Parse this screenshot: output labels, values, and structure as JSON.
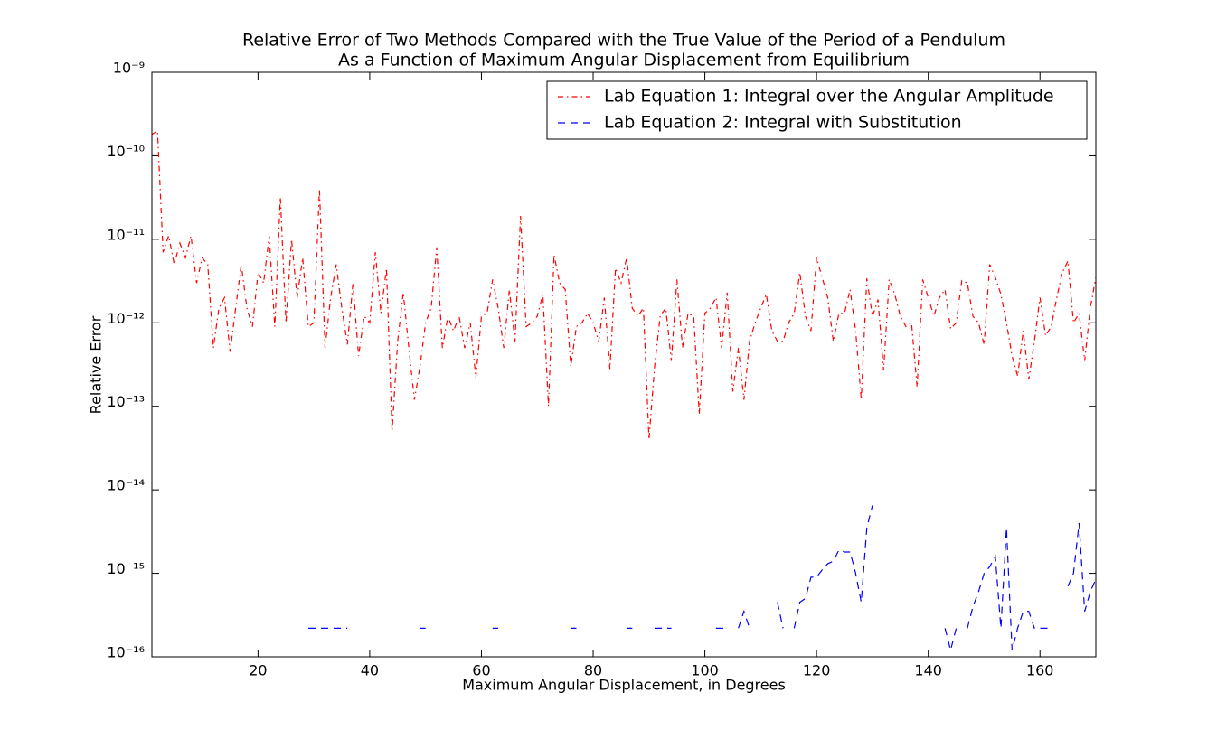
{
  "chart_data": {
    "type": "line",
    "title": "Relative Error of Two Methods Compared with the True Value of the Period of a Pendulum",
    "subtitle": "As a Function of Maximum Angular Displacement from Equilibrium",
    "x_label": "Maximum Angular Displacement, in Degrees",
    "y_label": "Relative Error",
    "yscale": "log",
    "legend": "upper right",
    "xlim": [
      1,
      170
    ],
    "ylim": [
      1e-16,
      1e-09
    ],
    "xticks": [
      20,
      40,
      60,
      80,
      100,
      120,
      140,
      160
    ],
    "yticks": [
      {
        "value": 1e-16,
        "label": "10⁻¹⁶"
      },
      {
        "value": 1e-15,
        "label": "10⁻¹⁵"
      },
      {
        "value": 1e-14,
        "label": "10⁻¹⁴"
      },
      {
        "value": 1e-13,
        "label": "10⁻¹³"
      },
      {
        "value": 1e-12,
        "label": "10⁻¹²"
      },
      {
        "value": 1e-11,
        "label": "10⁻¹¹"
      },
      {
        "value": 1e-10,
        "label": "10⁻¹⁰"
      },
      {
        "value": 1e-09,
        "label": "10⁻⁹"
      }
    ],
    "x": [
      1,
      2,
      3,
      4,
      5,
      6,
      7,
      8,
      9,
      10,
      11,
      12,
      13,
      14,
      15,
      16,
      17,
      18,
      19,
      20,
      21,
      22,
      23,
      24,
      25,
      26,
      27,
      28,
      29,
      30,
      31,
      32,
      33,
      34,
      35,
      36,
      37,
      38,
      39,
      40,
      41,
      42,
      43,
      44,
      45,
      46,
      47,
      48,
      49,
      50,
      51,
      52,
      53,
      54,
      55,
      56,
      57,
      58,
      59,
      60,
      61,
      62,
      63,
      64,
      65,
      66,
      67,
      68,
      69,
      70,
      71,
      72,
      73,
      74,
      75,
      76,
      77,
      78,
      79,
      80,
      81,
      82,
      83,
      84,
      85,
      86,
      87,
      88,
      89,
      90,
      91,
      92,
      93,
      94,
      95,
      96,
      97,
      98,
      99,
      100,
      101,
      102,
      103,
      104,
      105,
      106,
      107,
      108,
      109,
      110,
      111,
      112,
      113,
      114,
      115,
      116,
      117,
      118,
      119,
      120,
      121,
      122,
      123,
      124,
      125,
      126,
      127,
      128,
      129,
      130,
      131,
      132,
      133,
      134,
      135,
      136,
      137,
      138,
      139,
      140,
      141,
      142,
      143,
      144,
      145,
      146,
      147,
      148,
      149,
      150,
      151,
      152,
      153,
      154,
      155,
      156,
      157,
      158,
      159,
      160,
      161,
      162,
      163,
      164,
      165,
      166,
      167,
      168,
      169,
      170
    ],
    "series": [
      {
        "name": "Lab Equation 1: Integral over the Angular Amplitude",
        "color": "#ff0000",
        "linestyle": "-.",
        "values": [
          1.8e-10,
          2e-10,
          7e-12,
          1.1e-11,
          5e-12,
          9e-12,
          6e-12,
          1.1e-11,
          3e-12,
          6e-12,
          5e-12,
          5e-13,
          1.5e-12,
          2e-12,
          4.5e-13,
          1.5e-12,
          5e-12,
          1.5e-12,
          9e-13,
          4e-12,
          3e-12,
          1.1e-11,
          9e-13,
          3.2e-11,
          1e-12,
          1e-11,
          2e-12,
          6e-12,
          9e-13,
          1e-12,
          4e-11,
          5e-13,
          2e-12,
          5e-12,
          1.5e-12,
          5.5e-13,
          3e-12,
          4e-13,
          1.2e-12,
          1e-12,
          7e-12,
          1.3e-12,
          4.5e-12,
          5e-14,
          6e-13,
          2.3e-12,
          5e-13,
          1.2e-13,
          3e-13,
          1e-12,
          1.5e-12,
          8e-12,
          5e-13,
          1.2e-12,
          8e-13,
          1.2e-12,
          5e-13,
          1e-12,
          2.2e-13,
          1.2e-12,
          1.3e-12,
          3.3e-12,
          1.5e-12,
          5e-13,
          2.5e-12,
          6e-13,
          1.9e-11,
          9e-13,
          1e-12,
          1.2e-12,
          2.2e-12,
          1e-13,
          6.5e-12,
          3e-12,
          2.5e-12,
          3e-13,
          9e-13,
          1e-12,
          1.3e-12,
          1e-12,
          6e-13,
          2e-12,
          2.8e-13,
          4.5e-12,
          3e-12,
          6e-12,
          1.5e-12,
          1.2e-12,
          1.5e-12,
          4e-14,
          3e-13,
          1.2e-12,
          1.5e-12,
          3.5e-13,
          3.3e-12,
          5e-13,
          1.3e-12,
          1.2e-12,
          8e-14,
          1.3e-12,
          1.5e-12,
          2e-12,
          5e-13,
          2.3e-12,
          1.5e-13,
          5e-13,
          1.2e-13,
          6e-13,
          1e-12,
          1.5e-12,
          2.2e-12,
          8e-13,
          6e-13,
          6e-13,
          1e-12,
          1.3e-12,
          4e-12,
          1.2e-12,
          8e-13,
          6e-12,
          3.5e-12,
          2e-12,
          6e-13,
          1.3e-12,
          1.3e-12,
          2.5e-12,
          8e-13,
          1.2e-13,
          3.4e-12,
          1.2e-12,
          1.9e-12,
          2.7e-13,
          3.3e-12,
          2.2e-12,
          1.2e-12,
          9e-13,
          1e-12,
          1.7e-13,
          3.3e-12,
          2e-12,
          1.2e-12,
          2e-12,
          2.5e-12,
          8.5e-13,
          1e-12,
          3.2e-12,
          3e-12,
          1.2e-12,
          1e-12,
          5.5e-13,
          5e-12,
          3.5e-12,
          2.2e-12,
          1e-12,
          4e-13,
          2.3e-13,
          8e-13,
          2.1e-13,
          6e-13,
          2e-12,
          7e-13,
          9e-13,
          2e-12,
          4e-12,
          5.5e-12,
          1e-12,
          1.3e-12,
          3.5e-13,
          1.5e-12,
          3.5e-12
        ]
      },
      {
        "name": "Lab Equation 2: Integral with Substitution",
        "color": "#0000ff",
        "linestyle": "--",
        "values": [
          null,
          null,
          null,
          null,
          null,
          null,
          null,
          null,
          null,
          null,
          null,
          null,
          null,
          null,
          null,
          null,
          null,
          null,
          null,
          null,
          null,
          null,
          null,
          null,
          null,
          null,
          null,
          null,
          2.2e-16,
          2.2e-16,
          2.2e-16,
          2.2e-16,
          2.2e-16,
          2.2e-16,
          2.2e-16,
          2.2e-16,
          null,
          null,
          null,
          null,
          null,
          null,
          null,
          null,
          null,
          null,
          null,
          null,
          2.2e-16,
          2.2e-16,
          null,
          null,
          null,
          null,
          null,
          null,
          null,
          null,
          null,
          null,
          null,
          2.2e-16,
          2.2e-16,
          null,
          null,
          null,
          null,
          null,
          null,
          null,
          null,
          null,
          null,
          null,
          null,
          2.2e-16,
          2.2e-16,
          null,
          null,
          null,
          null,
          null,
          null,
          null,
          null,
          2.2e-16,
          2.2e-16,
          null,
          null,
          null,
          2.2e-16,
          2.2e-16,
          2.2e-16,
          2.2e-16,
          null,
          null,
          null,
          null,
          null,
          null,
          null,
          2.2e-16,
          2.2e-16,
          2.2e-16,
          null,
          2.2e-16,
          3.5e-16,
          2.2e-16,
          null,
          null,
          null,
          null,
          4.5e-16,
          2.2e-16,
          null,
          2.2e-16,
          4.5e-16,
          5e-16,
          9e-16,
          9e-16,
          1.1e-15,
          1.3e-15,
          1.4e-15,
          1.9e-15,
          1.8e-15,
          1.8e-15,
          1e-15,
          4.5e-16,
          3.5e-15,
          6.5e-15,
          null,
          null,
          null,
          null,
          null,
          null,
          null,
          null,
          null,
          null,
          null,
          null,
          2.2e-16,
          1.2e-16,
          2.2e-16,
          null,
          2.2e-16,
          4e-16,
          6e-16,
          1e-15,
          1.2e-15,
          1.6e-15,
          2.2e-16,
          3.5e-15,
          1.2e-16,
          2.2e-16,
          3.5e-16,
          3.5e-16,
          2.2e-16,
          2.2e-16,
          2.2e-16,
          2.2e-16,
          null,
          null,
          7e-16,
          1e-15,
          4e-15,
          3.5e-16,
          6e-16,
          8.5e-16
        ]
      }
    ]
  }
}
